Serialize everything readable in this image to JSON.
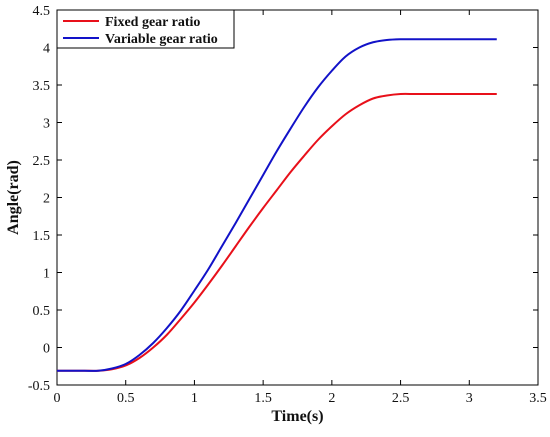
{
  "chart_data": {
    "type": "line",
    "title": "",
    "xlabel": "Time(s)",
    "ylabel": "Angle(rad)",
    "xlim": [
      0,
      3.5
    ],
    "ylim": [
      -0.5,
      4.5
    ],
    "x_ticks": [
      "0",
      "0.5",
      "1",
      "1.5",
      "2",
      "2.5",
      "3",
      "3.5"
    ],
    "y_ticks": [
      "-0.5",
      "0",
      "0.5",
      "1",
      "1.5",
      "2",
      "2.5",
      "3",
      "3.5",
      "4",
      "4.5"
    ],
    "grid": false,
    "legend_position": "top-left",
    "x": [
      0,
      0.1,
      0.2,
      0.3,
      0.4,
      0.5,
      0.6,
      0.7,
      0.8,
      0.9,
      1.0,
      1.1,
      1.2,
      1.3,
      1.4,
      1.5,
      1.6,
      1.7,
      1.8,
      1.9,
      2.0,
      2.1,
      2.2,
      2.3,
      2.4,
      2.5,
      2.6,
      2.7,
      2.8,
      2.9,
      3.0,
      3.1,
      3.2
    ],
    "series": [
      {
        "name": "Fixed gear ratio",
        "color": "#e8101a",
        "values": [
          -0.31,
          -0.31,
          -0.31,
          -0.31,
          -0.29,
          -0.24,
          -0.14,
          0.0,
          0.17,
          0.38,
          0.6,
          0.84,
          1.09,
          1.35,
          1.61,
          1.86,
          2.1,
          2.34,
          2.56,
          2.77,
          2.95,
          3.11,
          3.23,
          3.32,
          3.36,
          3.38,
          3.38,
          3.38,
          3.38,
          3.38,
          3.38,
          3.38,
          3.38
        ]
      },
      {
        "name": "Variable gear ratio",
        "color": "#1212c8",
        "values": [
          -0.31,
          -0.31,
          -0.31,
          -0.31,
          -0.28,
          -0.22,
          -0.1,
          0.06,
          0.26,
          0.49,
          0.76,
          1.04,
          1.35,
          1.66,
          1.98,
          2.3,
          2.62,
          2.92,
          3.21,
          3.47,
          3.69,
          3.88,
          4.0,
          4.07,
          4.1,
          4.11,
          4.11,
          4.11,
          4.11,
          4.11,
          4.11,
          4.11,
          4.11
        ]
      }
    ]
  }
}
